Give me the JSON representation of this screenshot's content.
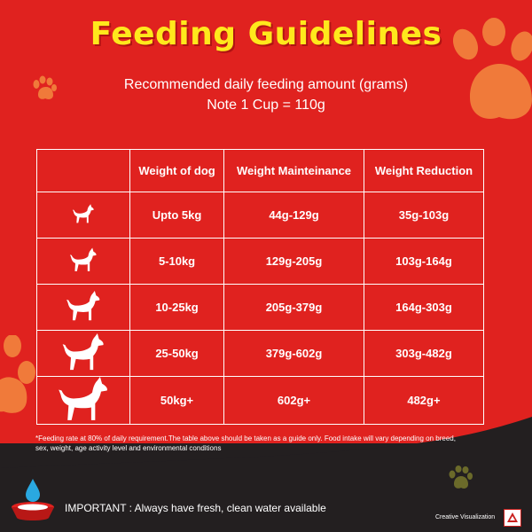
{
  "title": "Feeding Guidelines",
  "subtitle_1": "Recommended daily feeding amount (grams)",
  "subtitle_2": "Note 1 Cup = 110g",
  "table": {
    "headers": [
      "",
      "Weight of dog",
      "Weight Mainteinance",
      "Weight Reduction"
    ],
    "rows": [
      {
        "dog_icon": "dog-icon-xs",
        "weight": "Upto 5kg",
        "maintenance": "44g-129g",
        "reduction": "35g-103g"
      },
      {
        "dog_icon": "dog-icon-s",
        "weight": "5-10kg",
        "maintenance": "129g-205g",
        "reduction": "103g-164g"
      },
      {
        "dog_icon": "dog-icon-m",
        "weight": "10-25kg",
        "maintenance": "205g-379g",
        "reduction": "164g-303g"
      },
      {
        "dog_icon": "dog-icon-l",
        "weight": "25-50kg",
        "maintenance": "379g-602g",
        "reduction": "303g-482g"
      },
      {
        "dog_icon": "dog-icon-xl",
        "weight": "50kg+",
        "maintenance": "602g+",
        "reduction": "482g+"
      }
    ]
  },
  "footnote": "*Feeding rate at 80% of daily requirement.The table above should be taken as a guide only. Food intake will vary depending on breed, sex, weight, age activity level and environmental conditions",
  "important": "IMPORTANT : Always have fresh, clean water available",
  "credit": "Creative Visualization",
  "colors": {
    "background": "#e0221f",
    "title": "#ffe81c",
    "dark_band": "#231f20",
    "paw_orange": "#f07a3a"
  },
  "icons": [
    "paw-icon",
    "dog-icon",
    "water-bowl-icon",
    "logo-icon"
  ]
}
